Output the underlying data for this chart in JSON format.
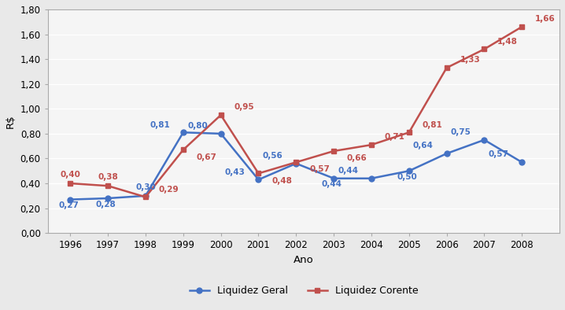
{
  "years": [
    1996,
    1997,
    1998,
    1999,
    2000,
    2001,
    2002,
    2003,
    2004,
    2005,
    2006,
    2007,
    2008
  ],
  "liquidez_geral": [
    0.27,
    0.28,
    0.3,
    0.81,
    0.8,
    0.43,
    0.56,
    0.44,
    0.44,
    0.5,
    0.64,
    0.75,
    0.57
  ],
  "liquidez_corente": [
    0.4,
    0.38,
    0.29,
    0.67,
    0.95,
    0.48,
    0.57,
    0.66,
    0.71,
    0.81,
    1.33,
    1.48,
    1.66
  ],
  "color_geral": "#4472C4",
  "color_corente": "#C0504D",
  "xlabel": "Ano",
  "ylim": [
    0.0,
    1.8
  ],
  "yticks": [
    0.0,
    0.2,
    0.4,
    0.6,
    0.8,
    1.0,
    1.2,
    1.4,
    1.6,
    1.8
  ],
  "legend_geral": "Liquidez Geral",
  "legend_corente": "Liquidez Corente",
  "bg_outer": "#E9E9E9",
  "bg_plot": "#F5F5F5",
  "grid_color": "#FFFFFF",
  "spine_color": "#AAAAAA"
}
